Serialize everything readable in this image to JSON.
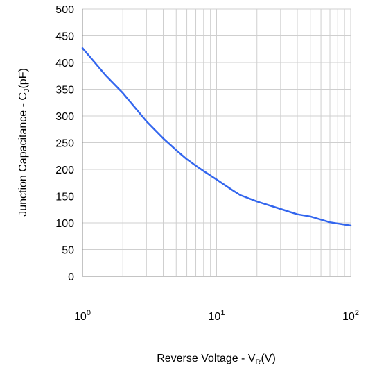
{
  "chart_data": {
    "type": "line",
    "title": "",
    "xlabel": {
      "main": "Reverse Voltage - V",
      "sub": "R",
      "unit": "(V)"
    },
    "ylabel": {
      "main": "Junction Capacitance - C",
      "sub": "J",
      "unit": "(pF)"
    },
    "xscale": "log",
    "xlim": [
      1,
      100
    ],
    "ylim": [
      0,
      500
    ],
    "grid": true,
    "x_ticks": [
      {
        "base": "10",
        "exp": "0"
      },
      {
        "base": "10",
        "exp": "1"
      },
      {
        "base": "10",
        "exp": "2"
      }
    ],
    "y_ticks": [
      "0",
      "50",
      "100",
      "150",
      "200",
      "250",
      "300",
      "350",
      "400",
      "450",
      "500"
    ],
    "line_color": "#3366ee",
    "series": [
      {
        "x": [
          1,
          1.5,
          2,
          3,
          4,
          5,
          6,
          7,
          8,
          10,
          13,
          15,
          20,
          30,
          40,
          50,
          70,
          100
        ],
        "y": [
          427,
          375,
          343,
          290,
          258,
          236,
          219,
          207,
          197,
          181,
          162,
          152,
          140,
          126,
          116,
          112,
          101,
          95
        ]
      }
    ]
  }
}
